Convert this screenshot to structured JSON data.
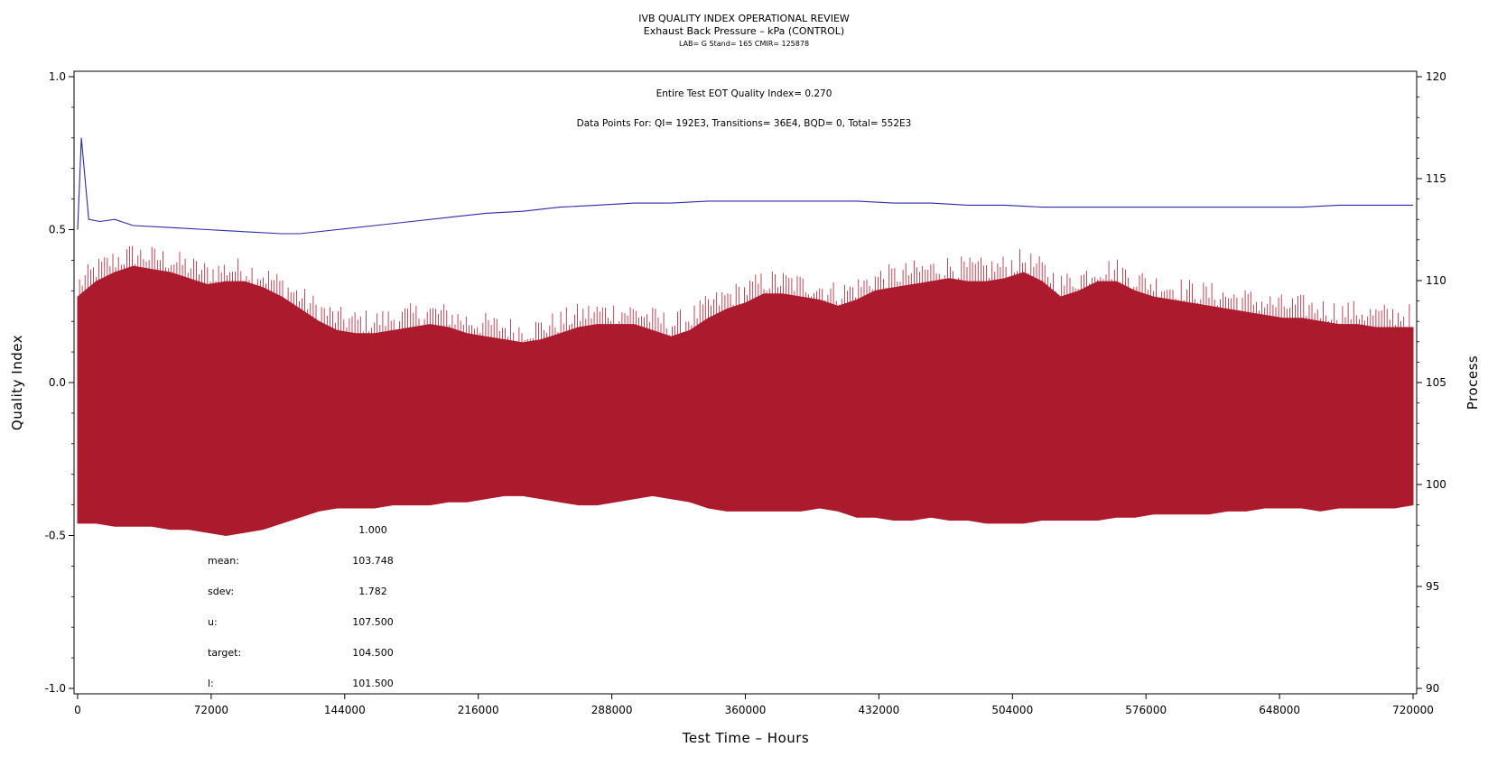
{
  "chart_data": {
    "type": "line",
    "title": "IVB QUALITY INDEX OPERATIONAL REVIEW",
    "subtitle": "Exhaust Back Pressure – kPa (CONTROL)",
    "subtitle2": "LAB= G Stand= 165 CMIR= 125878",
    "annotations": [
      "Entire Test EOT Quality Index=   0.270",
      "Data Points For: QI= 192E3, Transitions=  36E4, BQD=     0, Total= 552E3"
    ],
    "xlabel": "Test Time – Hours",
    "ylabel_left": "Quality Index",
    "ylabel_right": "Process",
    "xlim": [
      0,
      720000
    ],
    "ylim_left": [
      -1.0,
      1.0
    ],
    "ylim_right": [
      90,
      120
    ],
    "x_ticks": [
      "0",
      "72000",
      "144000",
      "216000",
      "288000",
      "360000",
      "432000",
      "504000",
      "576000",
      "648000",
      "720000"
    ],
    "y_left_ticks": [
      "1.0",
      "0.5",
      "0.0",
      "-0.5",
      "-1.0"
    ],
    "y_right_ticks": [
      "120",
      "115",
      "110",
      "105",
      "100",
      "95",
      "90"
    ],
    "stats": [
      {
        "label": "",
        "value": "1.000"
      },
      {
        "label": "mean:",
        "value": "103.748"
      },
      {
        "label": "sdev:",
        "value": "1.782"
      },
      {
        "label": "u:",
        "value": "107.500"
      },
      {
        "label": "target:",
        "value": "104.500"
      },
      {
        "label": "l:",
        "value": "101.500"
      }
    ],
    "series": [
      {
        "name": "Quality Index",
        "axis": "left",
        "color": "#ac1a2d",
        "x": [
          0,
          10000,
          20000,
          30000,
          40000,
          50000,
          60000,
          70000,
          80000,
          90000,
          100000,
          110000,
          120000,
          130000,
          140000,
          150000,
          160000,
          170000,
          180000,
          190000,
          200000,
          210000,
          220000,
          230000,
          240000,
          250000,
          260000,
          270000,
          280000,
          290000,
          300000,
          310000,
          320000,
          330000,
          340000,
          350000,
          360000,
          370000,
          380000,
          390000,
          400000,
          410000,
          420000,
          430000,
          440000,
          450000,
          460000,
          470000,
          480000,
          490000,
          500000,
          510000,
          520000,
          530000,
          540000,
          550000,
          560000,
          570000,
          580000,
          590000,
          600000,
          610000,
          620000,
          630000,
          640000,
          650000,
          660000,
          670000,
          680000,
          690000,
          700000,
          710000,
          720000
        ],
        "upper": [
          0.28,
          0.33,
          0.36,
          0.38,
          0.37,
          0.36,
          0.34,
          0.32,
          0.33,
          0.33,
          0.31,
          0.28,
          0.24,
          0.2,
          0.17,
          0.16,
          0.16,
          0.17,
          0.18,
          0.19,
          0.18,
          0.16,
          0.15,
          0.14,
          0.13,
          0.14,
          0.16,
          0.18,
          0.19,
          0.19,
          0.19,
          0.17,
          0.15,
          0.17,
          0.21,
          0.24,
          0.26,
          0.29,
          0.29,
          0.28,
          0.27,
          0.25,
          0.27,
          0.3,
          0.31,
          0.32,
          0.33,
          0.34,
          0.33,
          0.33,
          0.34,
          0.36,
          0.33,
          0.28,
          0.3,
          0.33,
          0.33,
          0.3,
          0.28,
          0.27,
          0.26,
          0.25,
          0.24,
          0.23,
          0.22,
          0.21,
          0.21,
          0.2,
          0.19,
          0.19,
          0.18,
          0.18,
          0.18
        ],
        "lower": [
          -0.46,
          -0.46,
          -0.47,
          -0.47,
          -0.47,
          -0.48,
          -0.48,
          -0.49,
          -0.5,
          -0.49,
          -0.48,
          -0.46,
          -0.44,
          -0.42,
          -0.41,
          -0.41,
          -0.41,
          -0.4,
          -0.4,
          -0.4,
          -0.39,
          -0.39,
          -0.38,
          -0.37,
          -0.37,
          -0.38,
          -0.39,
          -0.4,
          -0.4,
          -0.39,
          -0.38,
          -0.37,
          -0.38,
          -0.39,
          -0.41,
          -0.42,
          -0.42,
          -0.42,
          -0.42,
          -0.42,
          -0.41,
          -0.42,
          -0.44,
          -0.44,
          -0.45,
          -0.45,
          -0.44,
          -0.45,
          -0.45,
          -0.46,
          -0.46,
          -0.46,
          -0.45,
          -0.45,
          -0.45,
          -0.45,
          -0.44,
          -0.44,
          -0.43,
          -0.43,
          -0.43,
          -0.43,
          -0.42,
          -0.42,
          -0.41,
          -0.41,
          -0.41,
          -0.42,
          -0.41,
          -0.41,
          -0.41,
          -0.41,
          -0.4
        ]
      },
      {
        "name": "Process",
        "axis": "right",
        "color": "#2a2aa8",
        "x": [
          0,
          2000,
          6000,
          12000,
          20000,
          30000,
          50000,
          70000,
          90000,
          110000,
          120000,
          140000,
          160000,
          180000,
          200000,
          220000,
          240000,
          260000,
          280000,
          300000,
          320000,
          340000,
          360000,
          380000,
          400000,
          420000,
          440000,
          460000,
          480000,
          500000,
          520000,
          540000,
          560000,
          580000,
          600000,
          620000,
          640000,
          660000,
          680000,
          700000,
          720000
        ],
        "y": [
          112.5,
          117.0,
          113.0,
          112.9,
          113.0,
          112.7,
          112.6,
          112.5,
          112.4,
          112.3,
          112.3,
          112.5,
          112.7,
          112.9,
          113.1,
          113.3,
          113.4,
          113.6,
          113.7,
          113.8,
          113.8,
          113.9,
          113.9,
          113.9,
          113.9,
          113.9,
          113.8,
          113.8,
          113.7,
          113.7,
          113.6,
          113.6,
          113.6,
          113.6,
          113.6,
          113.6,
          113.6,
          113.6,
          113.7,
          113.7,
          113.7
        ]
      }
    ]
  }
}
